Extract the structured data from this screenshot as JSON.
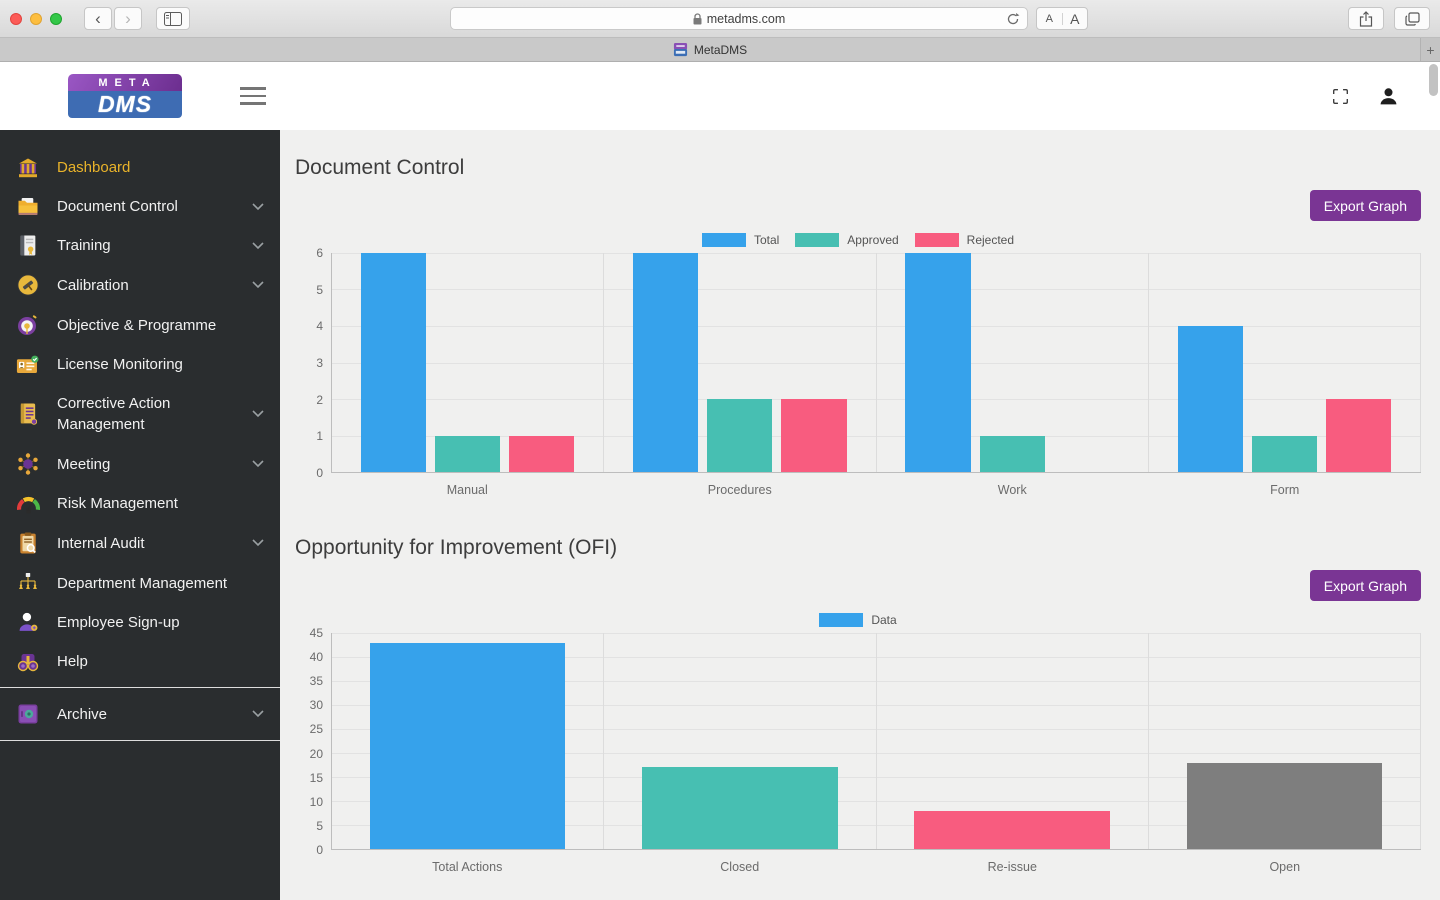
{
  "browser": {
    "url": "metadms.com",
    "tab_title": "MetaDMS",
    "font_size_small": "A",
    "font_size_large": "A",
    "new_tab_label": "+"
  },
  "logo": {
    "top": "META",
    "bottom": "DMS"
  },
  "sidebar": {
    "items": [
      {
        "label": "Dashboard"
      },
      {
        "label": "Document Control"
      },
      {
        "label": "Training"
      },
      {
        "label": "Calibration"
      },
      {
        "label": "Objective & Programme"
      },
      {
        "label": "License Monitoring"
      },
      {
        "label": "Corrective Action Management"
      },
      {
        "label": "Meeting"
      },
      {
        "label": "Risk Management"
      },
      {
        "label": "Internal Audit"
      },
      {
        "label": "Department Management"
      },
      {
        "label": "Employee Sign-up"
      },
      {
        "label": "Help"
      },
      {
        "label": "Archive"
      }
    ]
  },
  "main": {
    "sections": [
      {
        "title": "Document Control",
        "export_label": "Export Graph"
      },
      {
        "title": "Opportunity for Improvement (OFI)",
        "export_label": "Export Graph"
      }
    ]
  },
  "colors": {
    "accent_purple": "#7A3594",
    "sidebar_active_gold": "#E9B32A",
    "bar_blue": "#36A2EB",
    "bar_teal": "#47BFB2",
    "bar_pink": "#F85C7F",
    "bar_gray": "#7E7E7E"
  },
  "chart_data": [
    {
      "type": "bar",
      "title": "Document Control",
      "categories": [
        "Manual",
        "Procedures",
        "Work",
        "Form"
      ],
      "series": [
        {
          "name": "Total",
          "color": "#36A2EB",
          "values": [
            6,
            6,
            6,
            4
          ]
        },
        {
          "name": "Approved",
          "color": "#47BFB2",
          "values": [
            1,
            2,
            1,
            1
          ]
        },
        {
          "name": "Rejected",
          "color": "#F85C7F",
          "values": [
            1,
            2,
            0,
            2
          ]
        }
      ],
      "ylim": [
        0,
        6
      ],
      "ystep": 1,
      "legend_position": "top",
      "grid": true
    },
    {
      "type": "bar",
      "title": "Opportunity for Improvement (OFI)",
      "categories": [
        "Total Actions",
        "Closed",
        "Re-issue",
        "Open"
      ],
      "series": [
        {
          "name": "Data",
          "values": [
            43,
            17,
            8,
            18
          ]
        }
      ],
      "legend_color": "#36A2EB",
      "bar_colors": [
        "#36A2EB",
        "#47BFB2",
        "#F85C7F",
        "#7E7E7E"
      ],
      "ylim": [
        0,
        45
      ],
      "ystep": 5,
      "legend_position": "top",
      "grid": true
    }
  ]
}
